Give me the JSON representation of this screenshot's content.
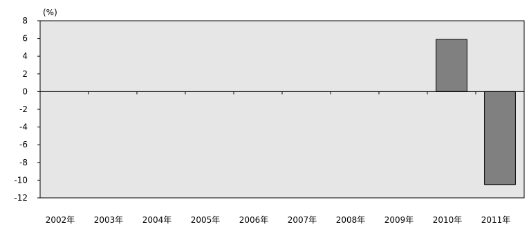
{
  "chart_data": {
    "type": "bar",
    "title": "",
    "xlabel": "",
    "ylabel": "",
    "unit_label": "(%)",
    "categories": [
      "2002年",
      "2003年",
      "2004年",
      "2005年",
      "2006年",
      "2007年",
      "2008年",
      "2009年",
      "2010年",
      "2011年"
    ],
    "values": [
      null,
      null,
      null,
      null,
      null,
      null,
      null,
      null,
      5.9,
      -10.5
    ],
    "ylim": [
      -12,
      8
    ],
    "yticks": [
      8,
      6,
      4,
      2,
      0,
      -2,
      -4,
      -6,
      -8,
      -10,
      -12
    ],
    "grid": false,
    "legend": "none",
    "colors": {
      "plot_background": "#e6e6e6",
      "bar_fill": "#808080",
      "bar_stroke": "#000000",
      "axis": "#000000"
    }
  }
}
